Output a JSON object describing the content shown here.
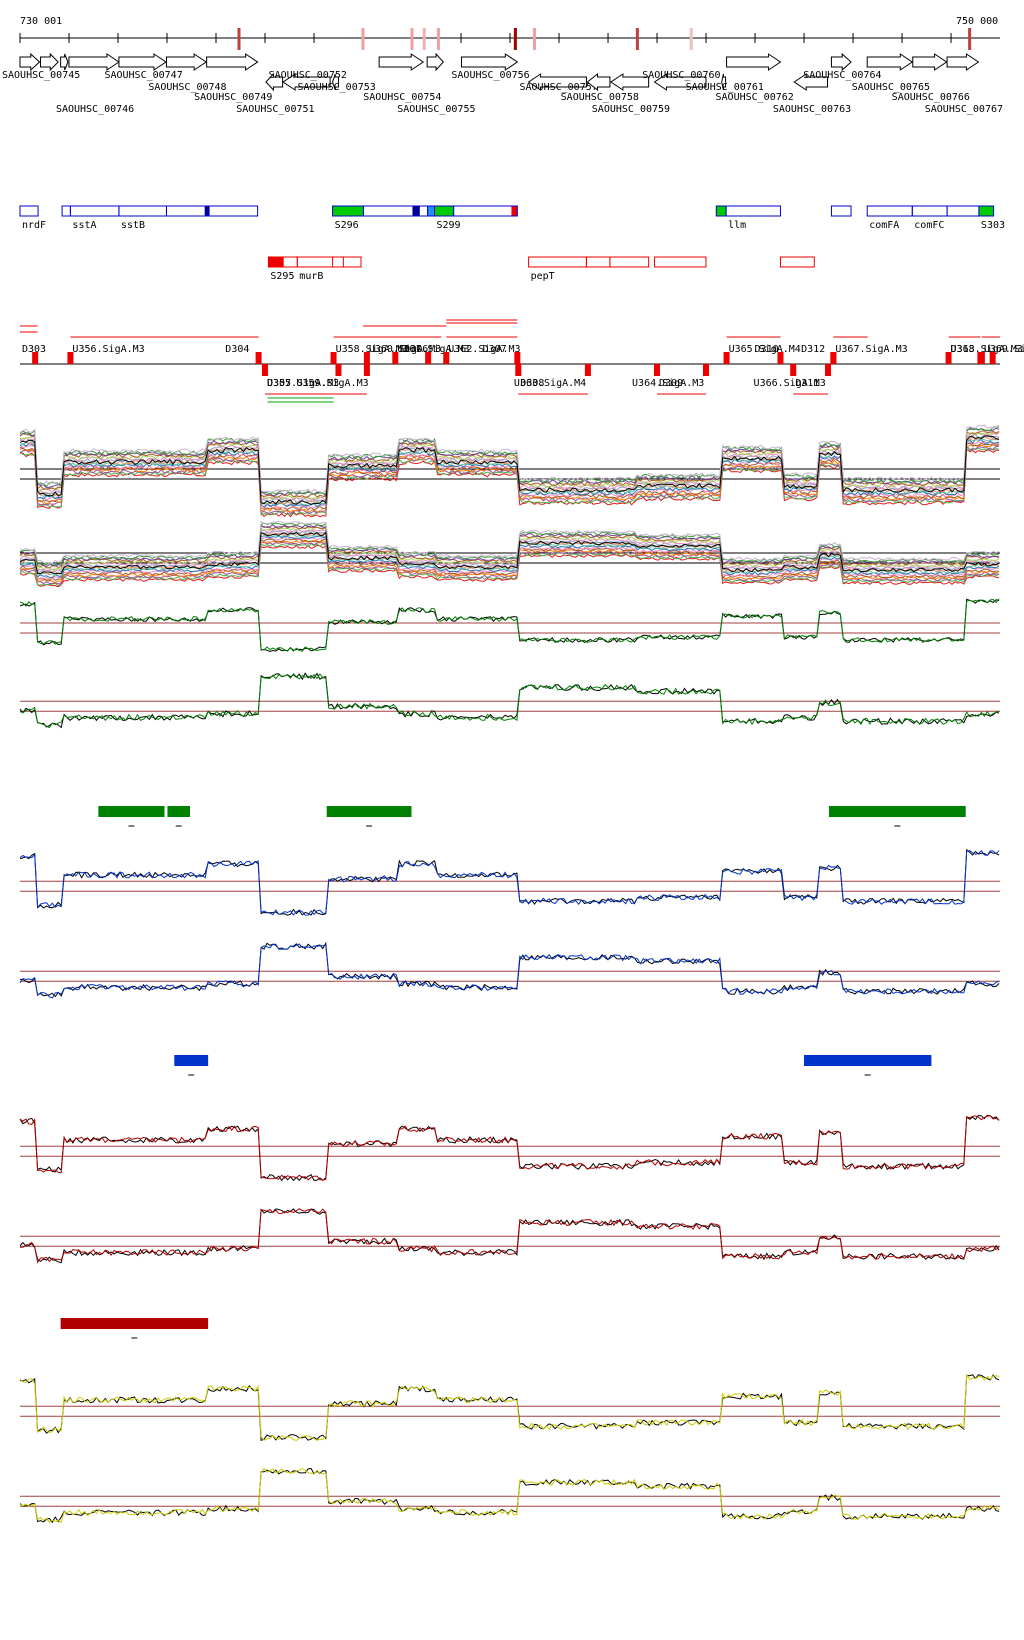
{
  "ruler": {
    "start_label": "730 001",
    "end_label": "750 000",
    "start": 730001,
    "end": 750000
  },
  "genes": [
    {
      "label": "SAOUHSC_00745",
      "start": 730001,
      "end": 730400,
      "strand": "+"
    },
    {
      "label": "",
      "start": 730420,
      "end": 730780,
      "strand": "+"
    },
    {
      "label": "",
      "start": 730830,
      "end": 730980,
      "strand": "+"
    },
    {
      "label": "SAOUHSC_00746",
      "start": 731000,
      "end": 732020,
      "strand": "+"
    },
    {
      "label": "SAOUHSC_00747",
      "start": 732020,
      "end": 732980,
      "strand": "+"
    },
    {
      "label": "SAOUHSC_00748",
      "start": 732990,
      "end": 733800,
      "strand": "+"
    },
    {
      "label": "SAOUHSC_00749",
      "start": 733810,
      "end": 734850,
      "strand": "+"
    },
    {
      "label": "SAOUHSC_00751",
      "start": 735020,
      "end": 735360,
      "strand": "-"
    },
    {
      "label": "SAOUHSC_00752",
      "start": 735370,
      "end": 736330,
      "strand": "-"
    },
    {
      "label": "SAOUHSC_00753",
      "start": 736380,
      "end": 736500,
      "strand": "-"
    },
    {
      "label": "SAOUHSC_00754",
      "start": 737330,
      "end": 738230,
      "strand": "+"
    },
    {
      "label": "SAOUHSC_00755",
      "start": 738310,
      "end": 738640,
      "strand": "+"
    },
    {
      "label": "SAOUHSC_00756",
      "start": 739010,
      "end": 740150,
      "strand": "+"
    },
    {
      "label": "SAOUHSC_00757",
      "start": 740380,
      "end": 741560,
      "strand": "-"
    },
    {
      "label": "SAOUHSC_00758",
      "start": 741580,
      "end": 742040,
      "strand": "-"
    },
    {
      "label": "SAOUHSC_00759",
      "start": 742060,
      "end": 742830,
      "strand": "-"
    },
    {
      "label": "SAOUHSC_00760",
      "start": 742950,
      "end": 744000,
      "strand": "-"
    },
    {
      "label": "SAOUHSC_00761",
      "start": 744320,
      "end": 744400,
      "strand": "-"
    },
    {
      "label": "SAOUHSC_00762",
      "start": 744420,
      "end": 745520,
      "strand": "+"
    },
    {
      "label": "SAOUHSC_00763",
      "start": 745800,
      "end": 746480,
      "strand": "-"
    },
    {
      "label": "SAOUHSC_00764",
      "start": 746560,
      "end": 746960,
      "strand": "+"
    },
    {
      "label": "SAOUHSC_00765",
      "start": 747290,
      "end": 748210,
      "strand": "+"
    },
    {
      "label": "SAOUHSC_00766",
      "start": 748220,
      "end": 748910,
      "strand": "+"
    },
    {
      "label": "SAOUHSC_00767",
      "start": 748920,
      "end": 749560,
      "strand": "+"
    }
  ],
  "gene_markers": [
    {
      "pos": 734470,
      "color": "#c04040"
    },
    {
      "pos": 737000,
      "color": "#f0a0a0"
    },
    {
      "pos": 738000,
      "color": "#f0a0a0"
    },
    {
      "pos": 738250,
      "color": "#f0b0b0"
    },
    {
      "pos": 738540,
      "color": "#f0a0a0"
    },
    {
      "pos": 740110,
      "color": "#a00000"
    },
    {
      "pos": 740500,
      "color": "#f0a0a0"
    },
    {
      "pos": 742600,
      "color": "#c04040"
    },
    {
      "pos": 743700,
      "color": "#f0c0c0"
    },
    {
      "pos": 749380,
      "color": "#c04040"
    }
  ],
  "operons": {
    "row1": [
      {
        "start": 730001,
        "end": 730370,
        "label": "nrdF",
        "fills": []
      },
      {
        "start": 730860,
        "end": 731030,
        "label": "",
        "fills": []
      },
      {
        "start": 731030,
        "end": 732020,
        "label": "sstA",
        "fills": []
      },
      {
        "start": 732020,
        "end": 732990,
        "label": "sstB",
        "fills": []
      },
      {
        "start": 732990,
        "end": 734850,
        "label": "",
        "fills": [
          {
            "start": 733770,
            "end": 733870,
            "color": "#000099"
          }
        ]
      },
      {
        "start": 736380,
        "end": 737010,
        "label": "S296",
        "fills": [
          {
            "start": 736380,
            "end": 737010,
            "color": "#00cc00"
          }
        ]
      },
      {
        "start": 737010,
        "end": 738320,
        "label": "",
        "fills": [
          {
            "start": 738010,
            "end": 738160,
            "color": "#000099"
          }
        ]
      },
      {
        "start": 738320,
        "end": 738460,
        "label": "",
        "fills": [
          {
            "start": 738320,
            "end": 738460,
            "color": "#1e90ff"
          }
        ]
      },
      {
        "start": 738460,
        "end": 738850,
        "label": "S299",
        "fills": [
          {
            "start": 738460,
            "end": 738850,
            "color": "#00cc00"
          }
        ]
      },
      {
        "start": 738850,
        "end": 740150,
        "label": "",
        "fills": [
          {
            "start": 740030,
            "end": 740150,
            "color": "#ee0000"
          }
        ]
      },
      {
        "start": 744210,
        "end": 744410,
        "label": "",
        "fills": [
          {
            "start": 744210,
            "end": 744410,
            "color": "#00cc00"
          }
        ]
      },
      {
        "start": 744410,
        "end": 745520,
        "label": "llm",
        "fills": []
      },
      {
        "start": 746560,
        "end": 746960,
        "label": "",
        "fills": []
      },
      {
        "start": 747290,
        "end": 748210,
        "label": "comFA",
        "fills": []
      },
      {
        "start": 748210,
        "end": 748920,
        "label": "comFC",
        "fills": []
      },
      {
        "start": 748920,
        "end": 749570,
        "label": "",
        "fills": []
      },
      {
        "start": 749570,
        "end": 749870,
        "label": "S303",
        "fills": [
          {
            "start": 749570,
            "end": 749870,
            "color": "#00cc00"
          }
        ]
      }
    ],
    "row2": [
      {
        "start": 735070,
        "end": 735370,
        "label": "S295",
        "fills": [
          {
            "start": 735070,
            "end": 735370,
            "color": "#ee0000"
          }
        ]
      },
      {
        "start": 735370,
        "end": 735660,
        "label": "",
        "fills": []
      },
      {
        "start": 735660,
        "end": 736600,
        "label": "murB",
        "fills": []
      },
      {
        "start": 736380,
        "end": 736960,
        "label": "",
        "fills": []
      },
      {
        "start": 740380,
        "end": 741560,
        "label": "pepT",
        "fills": []
      },
      {
        "start": 741560,
        "end": 742040,
        "label": "",
        "fills": []
      },
      {
        "start": 742040,
        "end": 742830,
        "label": "",
        "fills": []
      },
      {
        "start": 742950,
        "end": 744000,
        "label": "",
        "fills": []
      },
      {
        "start": 745520,
        "end": 746210,
        "label": "",
        "fills": []
      }
    ]
  },
  "promoters_top": [
    {
      "label": "D303",
      "anchor": 730310,
      "label_start": 730001,
      "line_to": null
    },
    {
      "label": "U356.SigA.M3",
      "anchor": 731030,
      "label_start": 731030,
      "line_to": 734870
    },
    {
      "label": "D304",
      "anchor": 734870,
      "label_start": 734150,
      "line_to": null
    },
    {
      "label": "U358.SigA.M3",
      "anchor": 736400,
      "label_start": 736400,
      "line_to": 737400
    },
    {
      "label": "U360.SigA.M3",
      "anchor": 737080,
      "label_start": 737080,
      "line_to": 737900
    },
    {
      "label": "U361.SigA.M3",
      "anchor": 737660,
      "label_start": 737660,
      "line_to": 738600
    },
    {
      "label": "D306",
      "anchor": 738330,
      "label_start": 737800,
      "line_to": null
    },
    {
      "label": "U362.SigA.M3",
      "anchor": 738700,
      "label_start": 738700,
      "line_to": 740150
    },
    {
      "label": "D307",
      "anchor": 740150,
      "label_start": 739400,
      "line_to": null
    },
    {
      "label": "U365.SigA.M4",
      "anchor": 744420,
      "label_start": 744420,
      "line_to": 745520
    },
    {
      "label": "D310",
      "anchor": 745520,
      "label_start": 744950,
      "line_to": null
    },
    {
      "label": "U367.SigA.M3",
      "anchor": 746600,
      "label_start": 746600,
      "line_to": 747300
    },
    {
      "label": "D312",
      "anchor": 746600,
      "label_start": 745900,
      "line_to": null
    },
    {
      "label": "U368.SigA.M3",
      "anchor": 748950,
      "label_start": 748950,
      "line_to": 749600
    },
    {
      "label": "D313",
      "anchor": 749600,
      "label_start": 748950,
      "line_to": null
    },
    {
      "label": "U369.SigA.M4",
      "anchor": 749630,
      "label_start": 749630,
      "line_to": 750000
    },
    {
      "label": "",
      "anchor": 749850,
      "label_start": 749850,
      "line_to": null
    }
  ],
  "promoters_bottom": [
    {
      "label": "D305",
      "anchor": 735000,
      "label_start": 735000,
      "line_to": null
    },
    {
      "label": "U357.SigA.M3",
      "anchor": 736500,
      "label_start": 735000,
      "line_to": 735000
    },
    {
      "label": "U359.SigA.M3",
      "anchor": 737080,
      "label_start": 735600,
      "line_to": 735600
    },
    {
      "label": "D308",
      "anchor": 740170,
      "label_start": 740170,
      "line_to": null
    },
    {
      "label": "U363.SigA.M4",
      "anchor": 741590,
      "label_start": 740040,
      "line_to": 740170
    },
    {
      "label": "D309",
      "anchor": 743000,
      "label_start": 743000,
      "line_to": null
    },
    {
      "label": "U364.SigA.M3",
      "anchor": 744000,
      "label_start": 742450,
      "line_to": 743000
    },
    {
      "label": "D311",
      "anchor": 745780,
      "label_start": 745780,
      "line_to": null
    },
    {
      "label": "U366.SigA.M3",
      "anchor": 746490,
      "label_start": 744930,
      "line_to": 745780
    }
  ],
  "bars": [
    {
      "track": 0,
      "start": 731600,
      "end": 732950,
      "color": "#008000"
    },
    {
      "track": 0,
      "start": 733010,
      "end": 733470,
      "color": "#008000"
    },
    {
      "track": 0,
      "start": 736260,
      "end": 737990,
      "color": "#008000"
    },
    {
      "track": 0,
      "start": 746510,
      "end": 749300,
      "color": "#008000"
    },
    {
      "track": 1,
      "start": 733150,
      "end": 733840,
      "color": "#0033cc"
    },
    {
      "track": 1,
      "start": 746000,
      "end": 748600,
      "color": "#0033cc"
    },
    {
      "track": 2,
      "start": 730830,
      "end": 733840,
      "color": "#b00000"
    }
  ],
  "profiles": [
    {
      "segments": [
        [
          730001,
          730350,
          0.85
        ],
        [
          730350,
          730900,
          0.2
        ],
        [
          730900,
          733800,
          0.6
        ],
        [
          733800,
          734900,
          0.75
        ],
        [
          734900,
          736300,
          0.1
        ],
        [
          736300,
          737700,
          0.55
        ],
        [
          737700,
          738500,
          0.75
        ],
        [
          738500,
          740200,
          0.6
        ],
        [
          740200,
          742600,
          0.25
        ],
        [
          742600,
          744300,
          0.3
        ],
        [
          744300,
          745600,
          0.65
        ],
        [
          745600,
          746300,
          0.3
        ],
        [
          746300,
          746800,
          0.7
        ],
        [
          746800,
          749300,
          0.25
        ],
        [
          749300,
          750000,
          0.9
        ]
      ]
    },
    {
      "segments": [
        [
          730001,
          730350,
          0.4
        ],
        [
          730350,
          730900,
          0.2
        ],
        [
          730900,
          733800,
          0.3
        ],
        [
          733800,
          734900,
          0.35
        ],
        [
          734900,
          736300,
          0.85
        ],
        [
          736300,
          737700,
          0.45
        ],
        [
          737700,
          738500,
          0.35
        ],
        [
          738500,
          740200,
          0.3
        ],
        [
          740200,
          742600,
          0.7
        ],
        [
          742600,
          744300,
          0.65
        ],
        [
          744300,
          745600,
          0.25
        ],
        [
          745600,
          746300,
          0.3
        ],
        [
          746300,
          746800,
          0.5
        ],
        [
          746800,
          749300,
          0.25
        ],
        [
          749300,
          750000,
          0.35
        ]
      ]
    }
  ]
}
